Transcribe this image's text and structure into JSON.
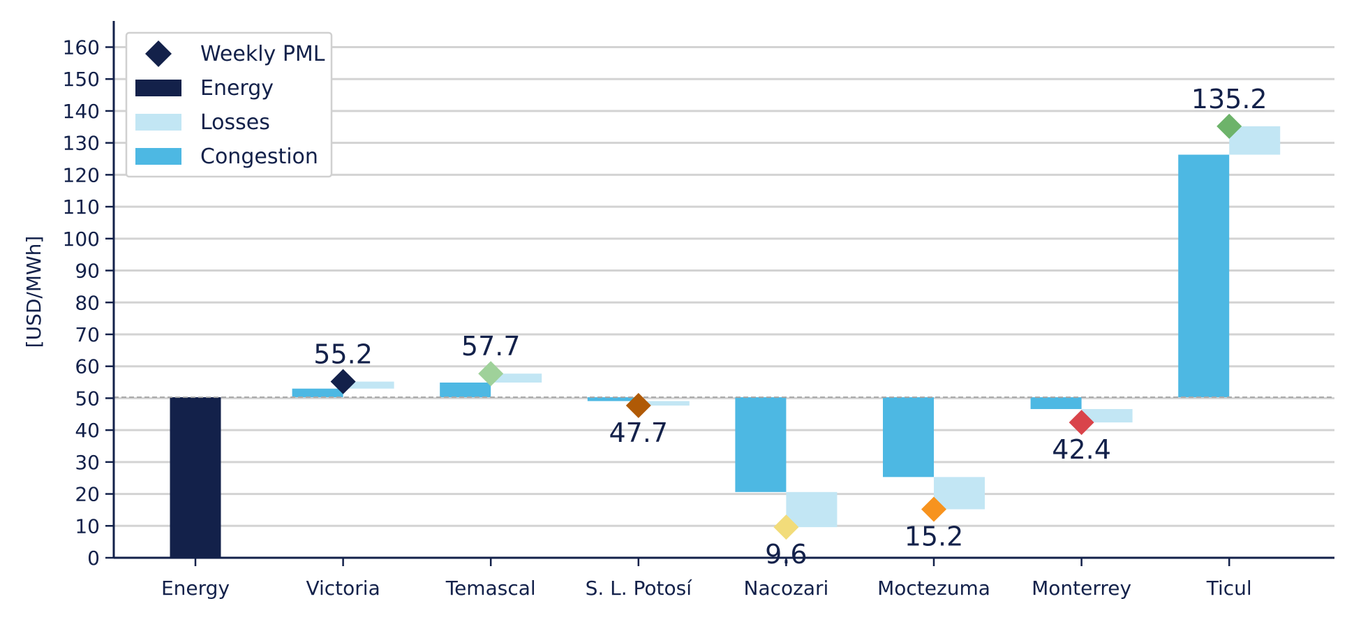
{
  "chart_data": {
    "type": "bar",
    "subtype": "waterfall",
    "ylabel": "[USD/MWh]",
    "ylim": [
      0,
      168
    ],
    "yticks": [
      0,
      10,
      20,
      30,
      40,
      50,
      60,
      70,
      80,
      90,
      100,
      110,
      120,
      130,
      140,
      150,
      160
    ],
    "grid": true,
    "baseline": 50.3,
    "categories": [
      "Energy",
      "Victoria",
      "Temascal",
      "S. L. Potosí",
      "Nacozari",
      "Moctezuma",
      "Monterrey",
      "Ticul"
    ],
    "energy": 50.3,
    "congestion": [
      null,
      2.7,
      4.6,
      -1.2,
      -29.7,
      -25.0,
      -3.7,
      76.0
    ],
    "losses": [
      null,
      2.2,
      2.8,
      -1.4,
      -11.0,
      -10.1,
      -4.2,
      8.9
    ],
    "weekly_pml": [
      null,
      55.2,
      57.7,
      47.7,
      9.6,
      15.2,
      42.4,
      135.2
    ],
    "pml_labels": [
      "",
      "55.2",
      "57.7",
      "47.7",
      "9.6",
      "15.2",
      "42.4",
      "135.2"
    ],
    "pml_colors": [
      "",
      "#13214a",
      "#9fd19a",
      "#b05a06",
      "#f2dc7a",
      "#f7931e",
      "#d9444a",
      "#6db36a"
    ],
    "legend": {
      "position": "top-left",
      "items": [
        {
          "name": "Weekly PML",
          "marker": "diamond",
          "color": "#13214a"
        },
        {
          "name": "Energy",
          "marker": "rect",
          "color": "#13214a"
        },
        {
          "name": "Losses",
          "marker": "rect",
          "color": "#c2e6f4"
        },
        {
          "name": "Congestion",
          "marker": "rect",
          "color": "#4db8e3"
        }
      ]
    },
    "colors": {
      "energy": "#13214a",
      "losses": "#c2e6f4",
      "congestion": "#4db8e3",
      "grid": "#d3d3d3",
      "axis": "#13214a",
      "baseline": "#a8a8a8"
    }
  }
}
